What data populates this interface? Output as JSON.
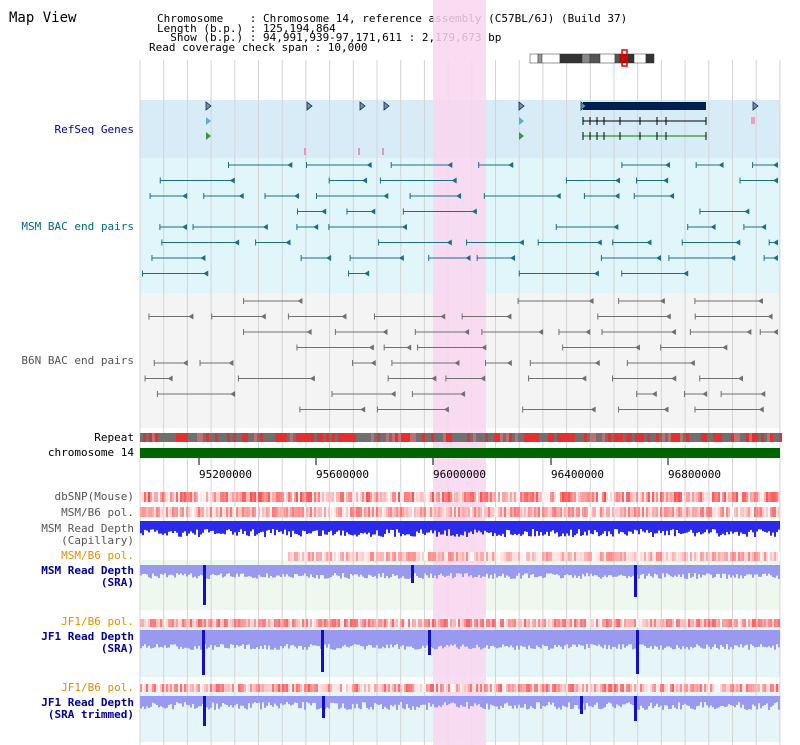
{
  "title": "Map View",
  "header": {
    "chromosome_label": "Chromosome    : Chromosome 14, reference assembly (C57BL/6J) (Build 37)",
    "length_label": "Length (b.p.) : 125,194,864",
    "show_label": "  Show (b.p.) : 94,991,939-97,171,611 : 2,179,673 bp",
    "coverage_label": "Read coverage check span : 10,000"
  },
  "tracks": {
    "refseq": "RefSeq Genes",
    "msm_bac": "MSM BAC end pairs",
    "b6n_bac": "B6N BAC end pairs",
    "repeat": "Repeat",
    "chromosome": "chromosome 14",
    "dbsnp": "dbSNP(Mouse)",
    "msm_b6_pol_1": "MSM/B6 pol.",
    "msm_depth_cap_1": "MSM Read Depth",
    "msm_depth_cap_2": "(Capillary)",
    "msm_b6_pol_2": "MSM/B6 pol.",
    "msm_depth_sra_1": "MSM Read Depth",
    "msm_depth_sra_2": "(SRA)",
    "jf1_b6_pol_1": "JF1/B6 pol.",
    "jf1_depth_sra_1": "JF1 Read Depth",
    "jf1_depth_sra_2": "(SRA)",
    "jf1_b6_pol_2": "JF1/B6 pol.",
    "jf1_depth_trim_1": "JF1 Read Depth",
    "jf1_depth_trim_2": "(SRA trimmed)"
  },
  "axis": {
    "ticks": [
      "95200000",
      "95600000",
      "96000000",
      "96400000",
      "96800000"
    ]
  },
  "colors": {
    "refseq_bg": "#d8ecf8",
    "msm_bg": "#e0f6fb",
    "b6n_bg": "#f4f4f4",
    "highlight": "#f9d6f0",
    "chromosome_bar": "#006400",
    "gene_block": "#002050",
    "teal": "#1a6f8a",
    "gray": "#707070",
    "depth_blue": "#3333ee",
    "depth_light": "#9999f0"
  }
}
